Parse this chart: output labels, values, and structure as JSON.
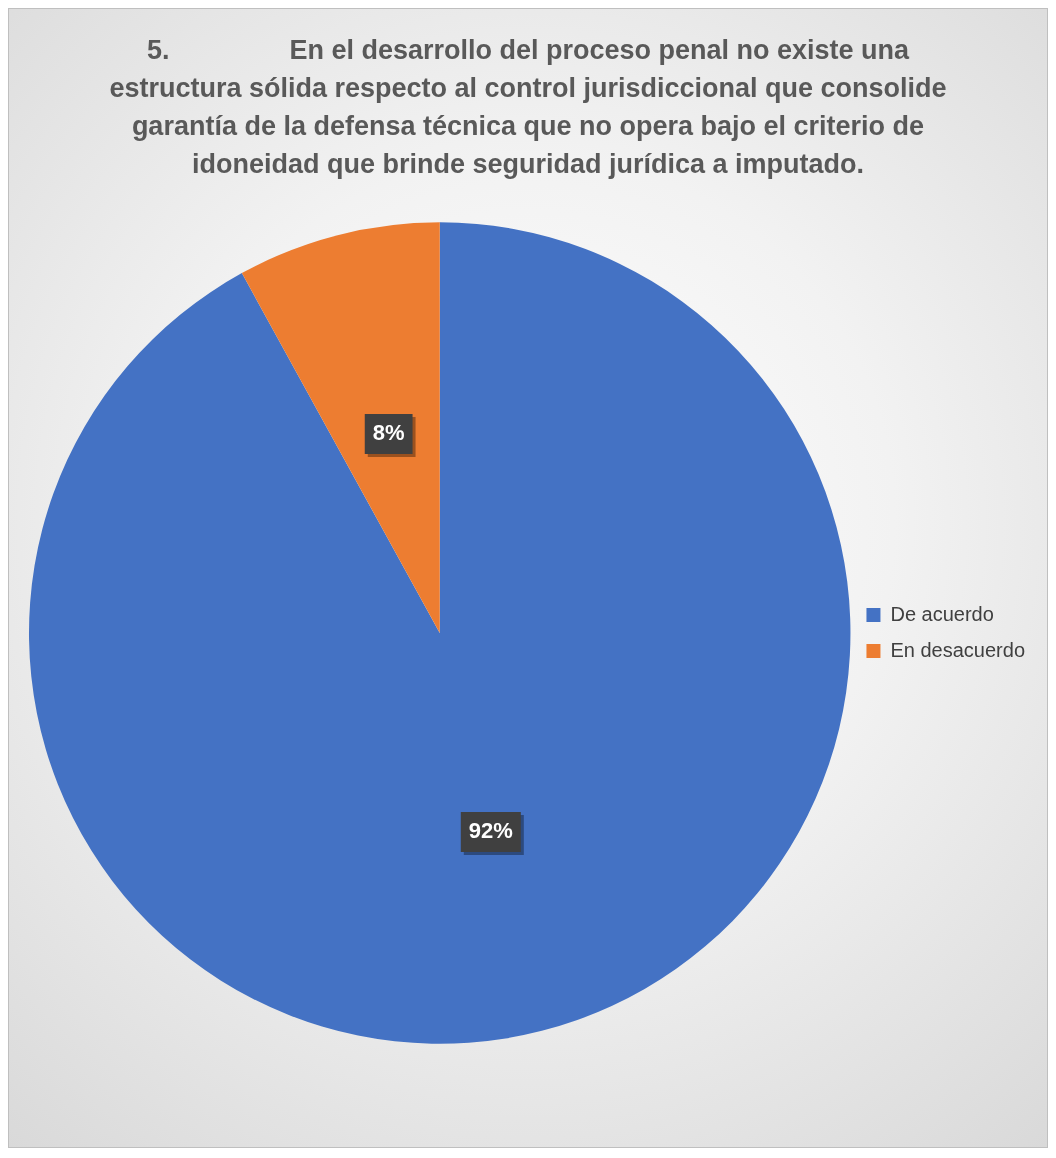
{
  "chart_data": {
    "type": "pie",
    "title": "5.                En el desarrollo del proceso penal no existe una estructura sólida respecto al control jurisdiccional que consolide garantía de la defensa técnica que no opera bajo el criterio de idoneidad que brinde seguridad jurídica a imputado.",
    "categories": [
      "De acuerdo",
      "En desacuerdo"
    ],
    "values": [
      92,
      8
    ],
    "colors": [
      "#4472c4",
      "#ed7d31"
    ],
    "value_labels": [
      "92%",
      "8%"
    ],
    "legend": "right"
  }
}
